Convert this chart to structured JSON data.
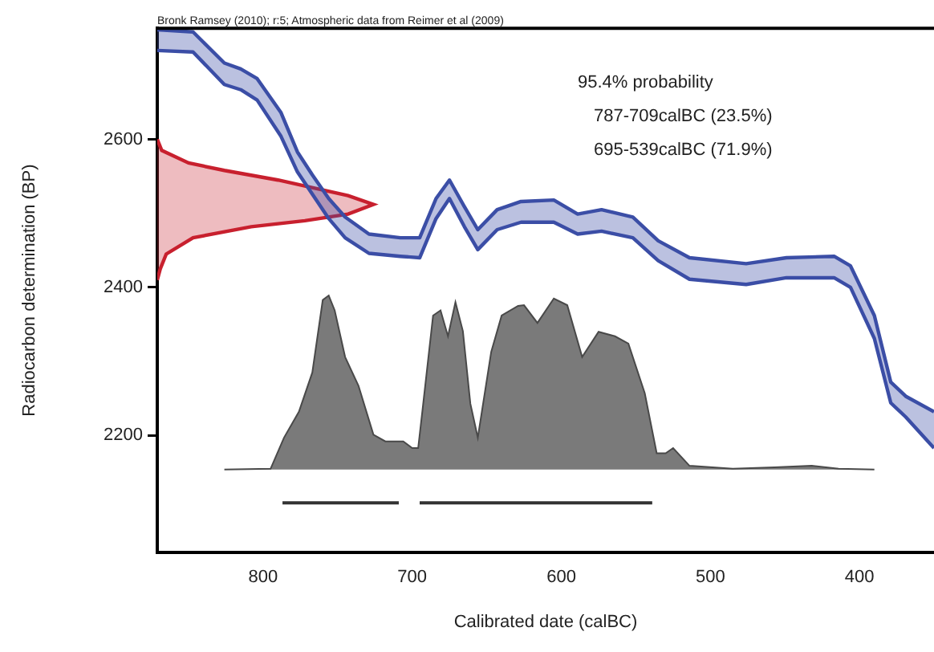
{
  "chart_data": {
    "type": "area",
    "xlabel": "Calibrated date (calBC)",
    "ylabel": "Radiocarbon determination (BP)",
    "annotations": [
      "Bronk Ramsey (2010); r:5; Atmospheric data from Reimer et al (2009)",
      "95.4% probability",
      "787-709calBC (23.5%)",
      "695-539calBC (71.9%)"
    ],
    "xlim": [
      871,
      350
    ],
    "xticks": [
      800,
      700,
      600,
      500,
      400
    ],
    "ylim": [
      2042,
      2750
    ],
    "yticks": [
      2200,
      2400,
      2600
    ],
    "grid": false,
    "legend": false,
    "series": [
      {
        "type": "line",
        "color": "#3b4ea6",
        "x": [
          871,
          847,
          826,
          815,
          804,
          788,
          777,
          767,
          756,
          745,
          729,
          708,
          695,
          684,
          675,
          665,
          656,
          643,
          627,
          605,
          589,
          573,
          552,
          535,
          514,
          476,
          449,
          417,
          406,
          390,
          379,
          369,
          350
        ],
        "values": [
          2748,
          2745,
          2703,
          2695,
          2682,
          2636,
          2583,
          2552,
          2520,
          2495,
          2472,
          2467,
          2467,
          2520,
          2545,
          2509,
          2478,
          2505,
          2516,
          2518,
          2499,
          2505,
          2495,
          2463,
          2440,
          2432,
          2440,
          2442,
          2429,
          2362,
          2272,
          2253,
          2232
        ]
      },
      {
        "type": "line",
        "color": "#3b4ea6",
        "x": [
          871,
          847,
          826,
          815,
          804,
          788,
          777,
          767,
          756,
          745,
          729,
          708,
          695,
          684,
          675,
          665,
          656,
          643,
          627,
          605,
          589,
          573,
          552,
          535,
          514,
          476,
          449,
          417,
          406,
          390,
          379,
          369,
          350
        ],
        "values": [
          2720,
          2718,
          2674,
          2667,
          2653,
          2604,
          2556,
          2526,
          2493,
          2467,
          2446,
          2442,
          2440,
          2493,
          2520,
          2482,
          2451,
          2478,
          2488,
          2488,
          2472,
          2476,
          2467,
          2436,
          2411,
          2404,
          2413,
          2413,
          2400,
          2331,
          2244,
          2225,
          2183
        ],
        "upper": [
          2748,
          2745,
          2703,
          2695,
          2682,
          2636,
          2583,
          2552,
          2520,
          2495,
          2472,
          2467,
          2467,
          2520,
          2545,
          2509,
          2478,
          2505,
          2516,
          2518,
          2499,
          2505,
          2495,
          2463,
          2440,
          2432,
          2440,
          2442,
          2429,
          2362,
          2272,
          2253,
          2232
        ],
        "lower": [
          2720,
          2718,
          2674,
          2667,
          2653,
          2604,
          2556,
          2526,
          2493,
          2467,
          2446,
          2442,
          2440,
          2493,
          2520,
          2482,
          2451,
          2478,
          2488,
          2488,
          2472,
          2476,
          2467,
          2436,
          2411,
          2404,
          2413,
          2413,
          2400,
          2331,
          2244,
          2225,
          2183
        ]
      },
      {
        "color": "#7a7a7a",
        "x": [
          826,
          795,
          786,
          776,
          767,
          760,
          756,
          752,
          745,
          736,
          726,
          718,
          706,
          700,
          696,
          693,
          686,
          681,
          676,
          671,
          666,
          661,
          656,
          647,
          640,
          629,
          625,
          616,
          605,
          596,
          586,
          575,
          564,
          555,
          544,
          536,
          530,
          525,
          514,
          485,
          457,
          432,
          414,
          390
        ],
        "values": [
          2154,
          2155,
          2197,
          2232,
          2285,
          2383,
          2389,
          2369,
          2306,
          2267,
          2201,
          2192,
          2192,
          2183,
          2183,
          2236,
          2362,
          2369,
          2334,
          2380,
          2341,
          2243,
          2197,
          2313,
          2362,
          2375,
          2376,
          2352,
          2385,
          2376,
          2306,
          2340,
          2334,
          2324,
          2257,
          2176,
          2176,
          2183,
          2159,
          2155,
          2157,
          2159,
          2155,
          2154
        ]
      },
      {
        "color": "#c8202e",
        "x": [
          871,
          868,
          850,
          826,
          790,
          772,
          743,
          726,
          743,
          772,
          808,
          847,
          865,
          869,
          871
        ],
        "values": [
          2600,
          2585,
          2568,
          2558,
          2545,
          2537,
          2524,
          2512,
          2499,
          2490,
          2482,
          2467,
          2445,
          2425,
          2410
        ]
      },
      {
        "type": "line",
        "color": "#333333",
        "x": [
          787,
          709
        ],
        "values": [
          2109,
          2109
        ]
      },
      {
        "type": "line",
        "color": "#333333",
        "x": [
          695,
          539
        ],
        "values": [
          2109,
          2109
        ]
      }
    ]
  }
}
